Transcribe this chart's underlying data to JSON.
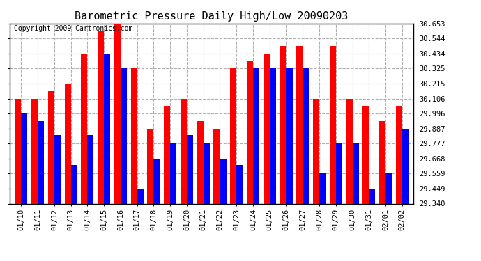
{
  "title": "Barometric Pressure Daily High/Low 20090203",
  "copyright": "Copyright 2009 Cartronics.com",
  "dates": [
    "01/10",
    "01/11",
    "01/12",
    "01/13",
    "01/14",
    "01/15",
    "01/16",
    "01/17",
    "01/18",
    "01/19",
    "01/20",
    "01/21",
    "01/22",
    "01/23",
    "01/24",
    "01/25",
    "01/26",
    "01/27",
    "01/28",
    "01/29",
    "01/30",
    "01/31",
    "02/01",
    "02/02"
  ],
  "highs": [
    30.106,
    30.106,
    30.16,
    30.215,
    30.434,
    30.6,
    30.653,
    30.325,
    29.887,
    30.05,
    30.106,
    29.94,
    29.887,
    30.325,
    30.38,
    30.434,
    30.49,
    30.49,
    30.106,
    30.49,
    30.106,
    30.05,
    29.94,
    30.05
  ],
  "lows": [
    29.996,
    29.94,
    29.84,
    29.62,
    29.84,
    30.434,
    30.325,
    29.45,
    29.668,
    29.777,
    29.84,
    29.777,
    29.668,
    29.62,
    30.325,
    30.325,
    30.325,
    30.325,
    29.56,
    29.777,
    29.777,
    29.449,
    29.559,
    29.887
  ],
  "ylim": [
    29.34,
    30.653
  ],
  "yticks": [
    29.34,
    29.449,
    29.559,
    29.668,
    29.777,
    29.887,
    29.996,
    30.106,
    30.215,
    30.325,
    30.434,
    30.544,
    30.653
  ],
  "high_color": "#ff0000",
  "low_color": "#0000ff",
  "bg_color": "#ffffff",
  "grid_color": "#b0b0b0",
  "title_fontsize": 11,
  "copyright_fontsize": 7,
  "tick_fontsize": 7.5
}
